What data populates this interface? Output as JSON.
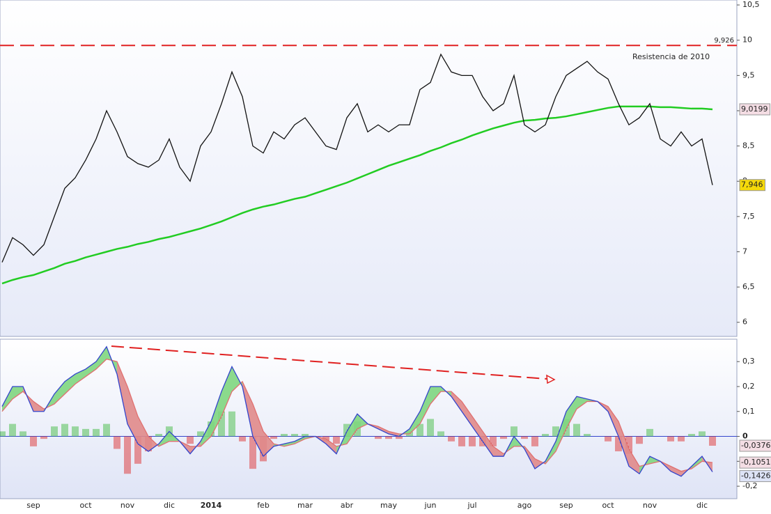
{
  "chart_data": [
    {
      "type": "line",
      "ylim": [
        5.8,
        10.57
      ],
      "yticks": [
        {
          "value": 10.5,
          "label": "10,5"
        },
        10,
        {
          "value": 9.5,
          "label": "9,5"
        },
        9,
        {
          "value": 8.5,
          "label": "8,5"
        },
        8,
        {
          "value": 7.5,
          "label": "7,5"
        },
        7,
        {
          "value": 6.5,
          "label": "6,5"
        },
        6
      ],
      "hline": {
        "value": 9.926,
        "label": "9,926",
        "color": "#e02020",
        "annotation": "Resistencia de 2010"
      },
      "series": [
        {
          "color": "#111111",
          "label_bg": "#f5d90a",
          "values": [
            6.85,
            7.2,
            7.1,
            6.95,
            7.1,
            7.5,
            7.9,
            8.05,
            8.3,
            8.6,
            9.0,
            8.7,
            8.35,
            8.25,
            8.2,
            8.3,
            8.6,
            8.2,
            8.0,
            8.5,
            8.7,
            9.1,
            9.55,
            9.2,
            8.5,
            8.4,
            8.7,
            8.6,
            8.8,
            8.9,
            8.7,
            8.5,
            8.45,
            8.9,
            9.1,
            8.7,
            8.8,
            8.7,
            8.8,
            8.8,
            9.3,
            9.4,
            9.8,
            9.55,
            9.5,
            9.5,
            9.2,
            9.0,
            9.1,
            9.5,
            8.8,
            8.7,
            8.8,
            9.2,
            9.5,
            9.6,
            9.7,
            9.55,
            9.45,
            9.1,
            8.8,
            8.9,
            9.1,
            8.6,
            8.5,
            8.7,
            8.5,
            8.6,
            7.946
          ],
          "value_labels": [
            null,
            null,
            null,
            null,
            null,
            null,
            null,
            null,
            null,
            null,
            null,
            null,
            null,
            null,
            null,
            null,
            null,
            null,
            null,
            null,
            null,
            null,
            null,
            null,
            null,
            null,
            null,
            null,
            null,
            null,
            null,
            null,
            null,
            null,
            null,
            null,
            null,
            null,
            null,
            null,
            null,
            null,
            null,
            null,
            null,
            null,
            null,
            null,
            null,
            null,
            null,
            null,
            null,
            null,
            null,
            null,
            null,
            null,
            null,
            null,
            null,
            null,
            null,
            null,
            null,
            null,
            null,
            null,
            "7,946"
          ]
        },
        {
          "color": "#22cc22",
          "label_bg": "#f4dde4",
          "values": [
            6.55,
            6.6,
            6.64,
            6.67,
            6.72,
            6.77,
            6.83,
            6.87,
            6.92,
            6.96,
            7.0,
            7.04,
            7.07,
            7.11,
            7.14,
            7.18,
            7.21,
            7.25,
            7.29,
            7.33,
            7.38,
            7.43,
            7.49,
            7.55,
            7.6,
            7.64,
            7.67,
            7.71,
            7.75,
            7.78,
            7.83,
            7.88,
            7.93,
            7.98,
            8.04,
            8.1,
            8.16,
            8.22,
            8.27,
            8.32,
            8.37,
            8.43,
            8.48,
            8.54,
            8.59,
            8.65,
            8.7,
            8.75,
            8.79,
            8.83,
            8.86,
            8.87,
            8.89,
            8.9,
            8.92,
            8.95,
            8.98,
            9.01,
            9.04,
            9.06,
            9.06,
            9.06,
            9.06,
            9.05,
            9.05,
            9.04,
            9.03,
            9.03,
            9.0199
          ],
          "value_labels": [
            null,
            null,
            null,
            null,
            null,
            null,
            null,
            null,
            null,
            null,
            null,
            null,
            null,
            null,
            null,
            null,
            null,
            null,
            null,
            null,
            null,
            null,
            null,
            null,
            null,
            null,
            null,
            null,
            null,
            null,
            null,
            null,
            null,
            null,
            null,
            null,
            null,
            null,
            null,
            null,
            null,
            null,
            null,
            null,
            null,
            null,
            null,
            null,
            null,
            null,
            null,
            null,
            null,
            null,
            null,
            null,
            null,
            null,
            null,
            null,
            null,
            null,
            null,
            null,
            null,
            null,
            null,
            null,
            "9,0199"
          ]
        }
      ]
    },
    {
      "type": "macd",
      "categories": [
        null,
        null,
        null,
        "sep",
        null,
        null,
        null,
        null,
        "oct",
        null,
        null,
        null,
        "nov",
        null,
        null,
        null,
        "dic",
        null,
        null,
        null,
        "2014",
        null,
        null,
        null,
        null,
        "feb",
        null,
        null,
        null,
        "mar",
        null,
        null,
        null,
        "abr",
        null,
        null,
        null,
        "may",
        null,
        null,
        null,
        "jun",
        null,
        null,
        null,
        "jul",
        null,
        null,
        null,
        null,
        "ago",
        null,
        null,
        null,
        "sep",
        null,
        null,
        null,
        "oct",
        null,
        null,
        null,
        "nov",
        null,
        null,
        null,
        null,
        "dic",
        null
      ],
      "ylim": [
        -0.25,
        0.39
      ],
      "yticks": [
        {
          "value": 0.3,
          "label": "0,3"
        },
        {
          "value": 0.2,
          "label": "0,2"
        },
        {
          "value": 0.1,
          "label": "0,1"
        },
        0,
        {
          "value": -0.1,
          "label": "-0,1"
        },
        {
          "value": -0.2,
          "label": "-0,2"
        }
      ],
      "series": [
        {
          "color": "#3344cc",
          "label_bg": "#dde3f6",
          "values": [
            0.12,
            0.2,
            0.2,
            0.1,
            0.1,
            0.17,
            0.22,
            0.25,
            0.27,
            0.3,
            0.36,
            0.25,
            0.05,
            -0.03,
            -0.06,
            -0.03,
            0.02,
            -0.02,
            -0.07,
            -0.02,
            0.06,
            0.18,
            0.28,
            0.2,
            0.0,
            -0.08,
            -0.04,
            -0.03,
            -0.02,
            0.0,
            0.0,
            -0.03,
            -0.07,
            0.02,
            0.09,
            0.05,
            0.03,
            0.01,
            0.0,
            0.03,
            0.1,
            0.2,
            0.2,
            0.16,
            0.1,
            0.04,
            -0.02,
            -0.08,
            -0.08,
            0.0,
            -0.05,
            -0.13,
            -0.1,
            -0.02,
            0.1,
            0.16,
            0.15,
            0.14,
            0.1,
            0.0,
            -0.12,
            -0.15,
            -0.08,
            -0.1,
            -0.14,
            -0.16,
            -0.12,
            -0.08,
            -0.1426
          ],
          "value_labels": [
            null,
            null,
            null,
            null,
            null,
            null,
            null,
            null,
            null,
            null,
            null,
            null,
            null,
            null,
            null,
            null,
            null,
            null,
            null,
            null,
            null,
            null,
            null,
            null,
            null,
            null,
            null,
            null,
            null,
            null,
            null,
            null,
            null,
            null,
            null,
            null,
            null,
            null,
            null,
            null,
            null,
            null,
            null,
            null,
            null,
            null,
            null,
            null,
            null,
            null,
            null,
            null,
            null,
            null,
            null,
            null,
            null,
            null,
            null,
            null,
            null,
            null,
            null,
            null,
            null,
            null,
            null,
            null,
            "-0,1426"
          ]
        },
        {
          "color": "#e07070",
          "label_bg": "#f4dde4",
          "values": [
            0.1,
            0.15,
            0.18,
            0.14,
            0.11,
            0.13,
            0.17,
            0.21,
            0.24,
            0.27,
            0.31,
            0.3,
            0.2,
            0.08,
            0.0,
            -0.04,
            -0.02,
            -0.02,
            -0.04,
            -0.04,
            0.0,
            0.08,
            0.18,
            0.22,
            0.13,
            0.02,
            -0.03,
            -0.04,
            -0.03,
            -0.01,
            0.0,
            -0.01,
            -0.04,
            -0.03,
            0.03,
            0.05,
            0.04,
            0.02,
            0.01,
            0.01,
            0.05,
            0.13,
            0.18,
            0.18,
            0.14,
            0.08,
            0.02,
            -0.04,
            -0.07,
            -0.04,
            -0.04,
            -0.09,
            -0.11,
            -0.06,
            0.03,
            0.11,
            0.14,
            0.14,
            0.12,
            0.06,
            -0.05,
            -0.12,
            -0.11,
            -0.1,
            -0.12,
            -0.14,
            -0.13,
            -0.1,
            -0.1051
          ],
          "value_labels": [
            null,
            null,
            null,
            null,
            null,
            null,
            null,
            null,
            null,
            null,
            null,
            null,
            null,
            null,
            null,
            null,
            null,
            null,
            null,
            null,
            null,
            null,
            null,
            null,
            null,
            null,
            null,
            null,
            null,
            null,
            null,
            null,
            null,
            null,
            null,
            null,
            null,
            null,
            null,
            null,
            null,
            null,
            null,
            null,
            null,
            null,
            null,
            null,
            null,
            null,
            null,
            null,
            null,
            null,
            null,
            null,
            null,
            null,
            null,
            null,
            null,
            null,
            null,
            null,
            null,
            null,
            null,
            null,
            "-0,1051"
          ]
        },
        {
          "type": "histogram",
          "color": "#44bb44",
          "color_down": "#dd3333",
          "label_bg": "#f4dde4",
          "values": [
            0.02,
            0.05,
            0.02,
            -0.04,
            -0.01,
            0.04,
            0.05,
            0.04,
            0.03,
            0.03,
            0.05,
            -0.05,
            -0.15,
            -0.11,
            -0.06,
            0.01,
            0.04,
            0,
            -0.03,
            0.02,
            0.06,
            0.1,
            0.1,
            -0.02,
            -0.13,
            -0.1,
            -0.01,
            0.01,
            0.01,
            0.01,
            0,
            -0.02,
            -0.03,
            0.05,
            0.06,
            0,
            -0.01,
            -0.01,
            -0.01,
            0.02,
            0.05,
            0.07,
            0.02,
            -0.02,
            -0.04,
            -0.04,
            -0.04,
            -0.04,
            -0.01,
            0.04,
            -0.01,
            -0.04,
            0.01,
            0.04,
            0.07,
            0.05,
            0.01,
            0,
            -0.02,
            -0.06,
            -0.07,
            -0.03,
            0.03,
            0,
            -0.02,
            -0.02,
            0.01,
            0.02,
            -0.0376
          ],
          "value_labels": [
            null,
            null,
            null,
            null,
            null,
            null,
            null,
            null,
            null,
            null,
            null,
            null,
            null,
            null,
            null,
            null,
            null,
            null,
            null,
            null,
            null,
            null,
            null,
            null,
            null,
            null,
            null,
            null,
            null,
            null,
            null,
            null,
            null,
            null,
            null,
            null,
            null,
            null,
            null,
            null,
            null,
            null,
            null,
            null,
            null,
            null,
            null,
            null,
            null,
            null,
            null,
            null,
            null,
            null,
            null,
            null,
            null,
            null,
            null,
            null,
            null,
            null,
            null,
            null,
            null,
            null,
            null,
            null,
            "-0,0376"
          ]
        }
      ]
    }
  ]
}
